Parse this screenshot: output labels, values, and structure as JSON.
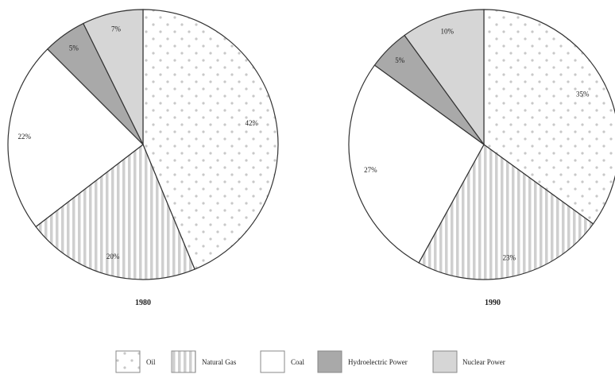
{
  "chart_data": [
    {
      "type": "pie",
      "title": "1980",
      "slices": [
        {
          "label": "Oil",
          "value": 42,
          "display": "42%",
          "fill": "dots"
        },
        {
          "label": "Natural Gas",
          "value": 20,
          "display": "20%",
          "fill": "stripes"
        },
        {
          "label": "Coal",
          "value": 22,
          "display": "22%",
          "fill": "plain"
        },
        {
          "label": "Hydroelectric Power",
          "value": 5,
          "display": "5%",
          "fill": "dark"
        },
        {
          "label": "Nuclear Power",
          "value": 7,
          "display": "7%",
          "fill": "light"
        }
      ]
    },
    {
      "type": "pie",
      "title": "1990",
      "slices": [
        {
          "label": "Oil",
          "value": 35,
          "display": "35%",
          "fill": "dots"
        },
        {
          "label": "Natural Gas",
          "value": 23,
          "display": "23%",
          "fill": "stripes"
        },
        {
          "label": "Coal",
          "value": 27,
          "display": "27%",
          "fill": "plain"
        },
        {
          "label": "Hydroelectric Power",
          "value": 5,
          "display": "5%",
          "fill": "dark"
        },
        {
          "label": "Nuclear Power",
          "value": 10,
          "display": "10%",
          "fill": "light"
        }
      ]
    }
  ],
  "legend": [
    {
      "label": "Oil",
      "fill": "dots"
    },
    {
      "label": "Natural Gas",
      "fill": "stripes"
    },
    {
      "label": "Coal",
      "fill": "plain"
    },
    {
      "label": "Hydroelectric Power",
      "fill": "dark"
    },
    {
      "label": "Nuclear Power",
      "fill": "light"
    }
  ],
  "colors": {
    "outline": "#333333",
    "dots_bg": "#ffffff",
    "dots": "#c8c8c8",
    "stripes_bg": "#ffffff",
    "stripes": "#cfcfcf",
    "plain": "#ffffff",
    "dark": "#a9a9a9",
    "light": "#d6d6d6"
  }
}
